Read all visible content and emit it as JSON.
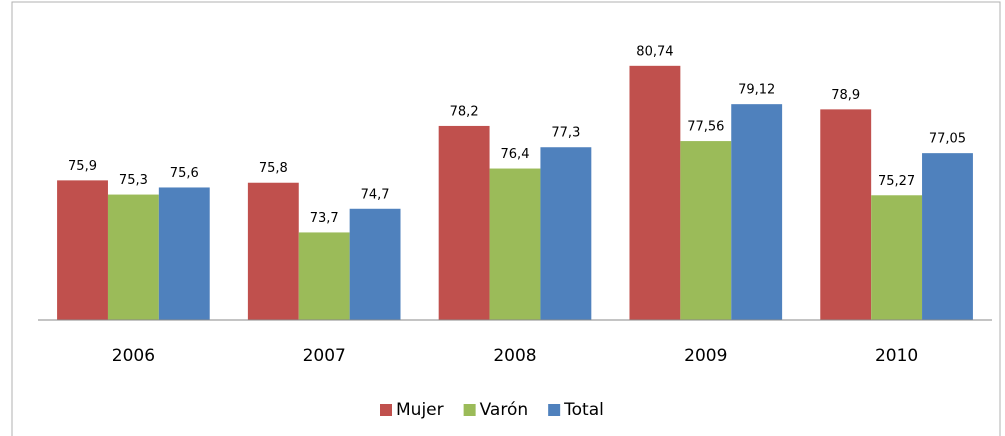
{
  "chart_data": {
    "type": "bar",
    "categories": [
      "2006",
      "2007",
      "2008",
      "2009",
      "2010"
    ],
    "series": [
      {
        "name": "Mujer",
        "color": "#c0504d",
        "values": [
          75.9,
          75.8,
          78.2,
          80.74,
          78.9
        ],
        "value_labels": [
          "75,9",
          "75,8",
          "78,2",
          "80,74",
          "78,9"
        ]
      },
      {
        "name": "Varón",
        "color": "#9bbb59",
        "values": [
          75.3,
          73.7,
          76.4,
          77.56,
          75.27
        ],
        "value_labels": [
          "75,3",
          "73,7",
          "76,4",
          "77,56",
          "75,27"
        ]
      },
      {
        "name": "Total",
        "color": "#4f81bd",
        "values": [
          75.6,
          74.7,
          77.3,
          79.12,
          77.05
        ],
        "value_labels": [
          "75,6",
          "74,7",
          "77,3",
          "79,12",
          "77,05"
        ]
      }
    ],
    "ylim": [
      70,
      82
    ],
    "legend": "bottom"
  }
}
